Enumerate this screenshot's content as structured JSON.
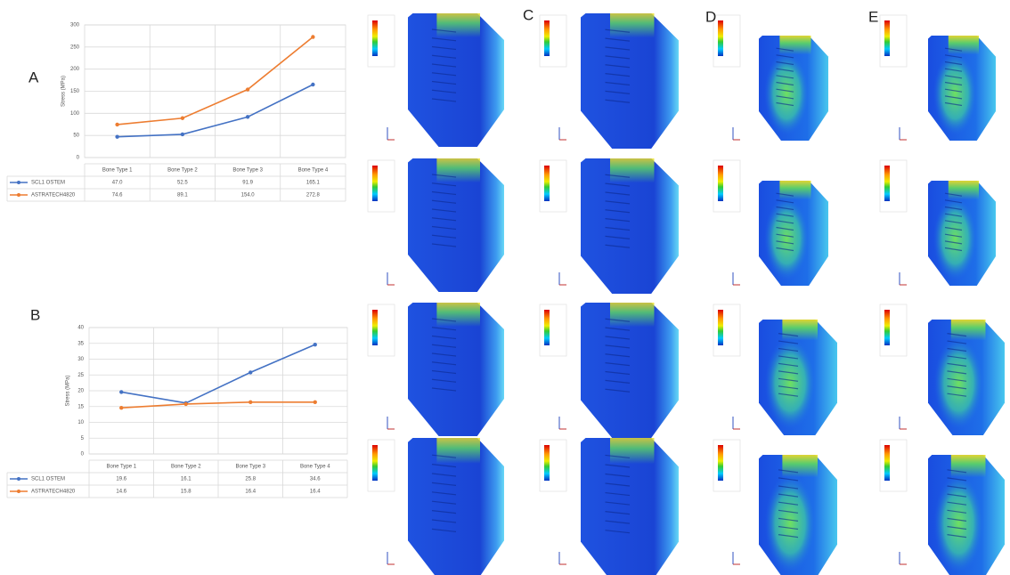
{
  "panels": [
    "A",
    "B",
    "C",
    "D",
    "E"
  ],
  "chart_data": [
    {
      "type": "line",
      "y_label": "Stress (MPa)",
      "categories": [
        "Bone Type 1",
        "Bone Type 2",
        "Bone Type 3",
        "Bone Type 4"
      ],
      "series": [
        {
          "name": "SCL1 OSTEM",
          "color": "#4472c4",
          "values": [
            47.0,
            52.5,
            91.9,
            165.1
          ],
          "value_labels": [
            "47.0",
            "52.5",
            "91.9",
            "165.1"
          ]
        },
        {
          "name": "ASTRATECH4820",
          "color": "#ed7d31",
          "values": [
            74.6,
            89.1,
            154.0,
            272.8
          ],
          "value_labels": [
            "74.6",
            "89.1",
            "154.0",
            "272.8"
          ]
        }
      ],
      "ylim": [
        0,
        300
      ],
      "yticks": [
        0,
        50,
        100,
        150,
        200,
        250,
        300
      ],
      "grid": true
    },
    {
      "type": "line",
      "y_label": "Stress (MPa)",
      "categories": [
        "Bone Type 1",
        "Bone Type 2",
        "Bone Type 3",
        "Bone Type 4"
      ],
      "series": [
        {
          "name": "SCL1 OSTEM",
          "color": "#4472c4",
          "values": [
            19.6,
            16.1,
            25.8,
            34.6
          ],
          "value_labels": [
            "19.6",
            "16.1",
            "25.8",
            "34.6"
          ]
        },
        {
          "name": "ASTRATECH4820",
          "color": "#ed7d31",
          "values": [
            14.6,
            15.8,
            16.4,
            16.4
          ],
          "value_labels": [
            "14.6",
            "15.8",
            "16.4",
            "16.4"
          ]
        }
      ],
      "ylim": [
        0,
        40
      ],
      "yticks": [
        0,
        5,
        10,
        15,
        20,
        25,
        30,
        35,
        40
      ],
      "grid": true
    }
  ]
}
